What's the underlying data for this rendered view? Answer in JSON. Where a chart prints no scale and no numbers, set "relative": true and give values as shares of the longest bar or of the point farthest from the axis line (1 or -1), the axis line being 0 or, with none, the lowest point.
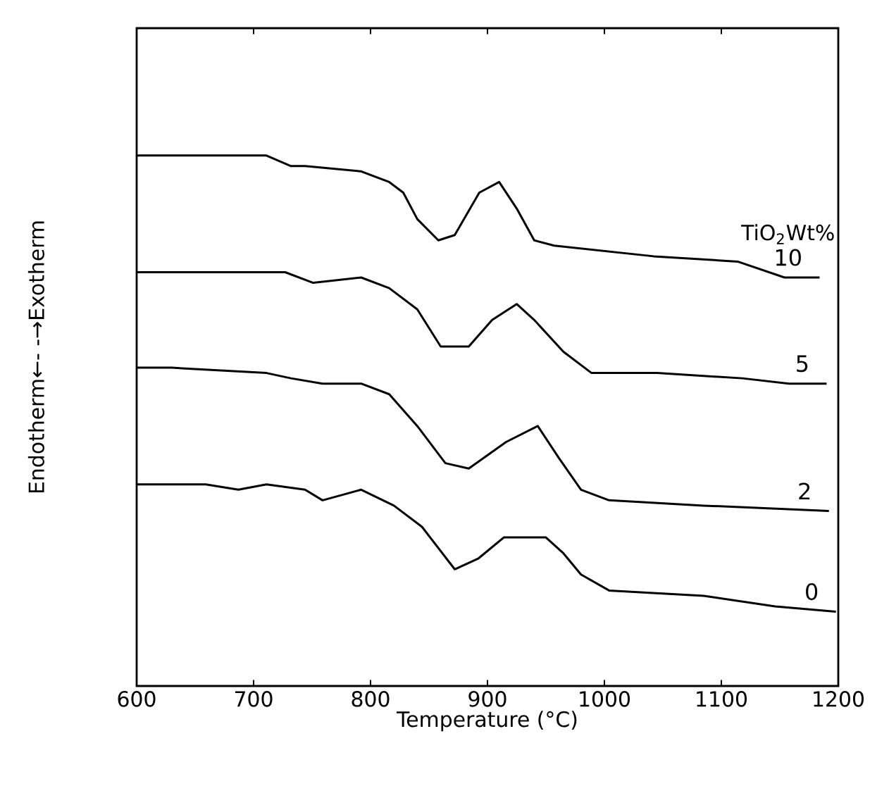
{
  "chart_data": {
    "type": "line",
    "relative": true,
    "xlabel": "Temperature (°C)",
    "ylabel": "Endotherm←- -→Exotherm",
    "legend_title": "TiO$_{2}$Wt%",
    "xlim": [
      600,
      1200
    ],
    "xticks": [
      600,
      700,
      800,
      900,
      1000,
      1100,
      1200
    ],
    "series": [
      {
        "name": "10",
        "color": "#000000",
        "x": [
          600,
          699,
          711,
          732,
          744,
          792,
          816,
          828,
          840,
          858,
          872,
          893,
          910,
          925,
          940,
          957,
          1042,
          1114,
          1154,
          1184
        ],
        "values": [
          1.0,
          1.0,
          1.0,
          0.98,
          0.98,
          0.97,
          0.95,
          0.93,
          0.88,
          0.84,
          0.85,
          0.93,
          0.95,
          0.9,
          0.84,
          0.83,
          0.81,
          0.8,
          0.77,
          0.77
        ]
      },
      {
        "name": "5",
        "color": "#000000",
        "x": [
          600,
          703,
          727,
          751,
          792,
          816,
          840,
          860,
          884,
          904,
          925,
          940,
          965,
          989,
          1045,
          1118,
          1158,
          1190
        ],
        "values": [
          0.78,
          0.78,
          0.78,
          0.76,
          0.77,
          0.75,
          0.71,
          0.64,
          0.64,
          0.69,
          0.72,
          0.69,
          0.63,
          0.59,
          0.59,
          0.58,
          0.57,
          0.57
        ]
      },
      {
        "name": "2",
        "color": "#000000",
        "x": [
          600,
          630,
          711,
          732,
          759,
          792,
          816,
          840,
          864,
          884,
          916,
          943,
          961,
          980,
          1004,
          1085,
          1192
        ],
        "values": [
          0.6,
          0.6,
          0.59,
          0.58,
          0.57,
          0.57,
          0.55,
          0.49,
          0.42,
          0.41,
          0.46,
          0.49,
          0.43,
          0.37,
          0.35,
          0.34,
          0.33
        ]
      },
      {
        "name": "0",
        "color": "#000000",
        "x": [
          600,
          659,
          687,
          711,
          744,
          759,
          792,
          820,
          844,
          872,
          892,
          914,
          937,
          950,
          965,
          980,
          1004,
          1085,
          1146,
          1198
        ],
        "values": [
          0.38,
          0.38,
          0.37,
          0.38,
          0.37,
          0.35,
          0.37,
          0.34,
          0.3,
          0.22,
          0.24,
          0.28,
          0.28,
          0.28,
          0.25,
          0.21,
          0.18,
          0.17,
          0.15,
          0.14
        ]
      }
    ]
  }
}
